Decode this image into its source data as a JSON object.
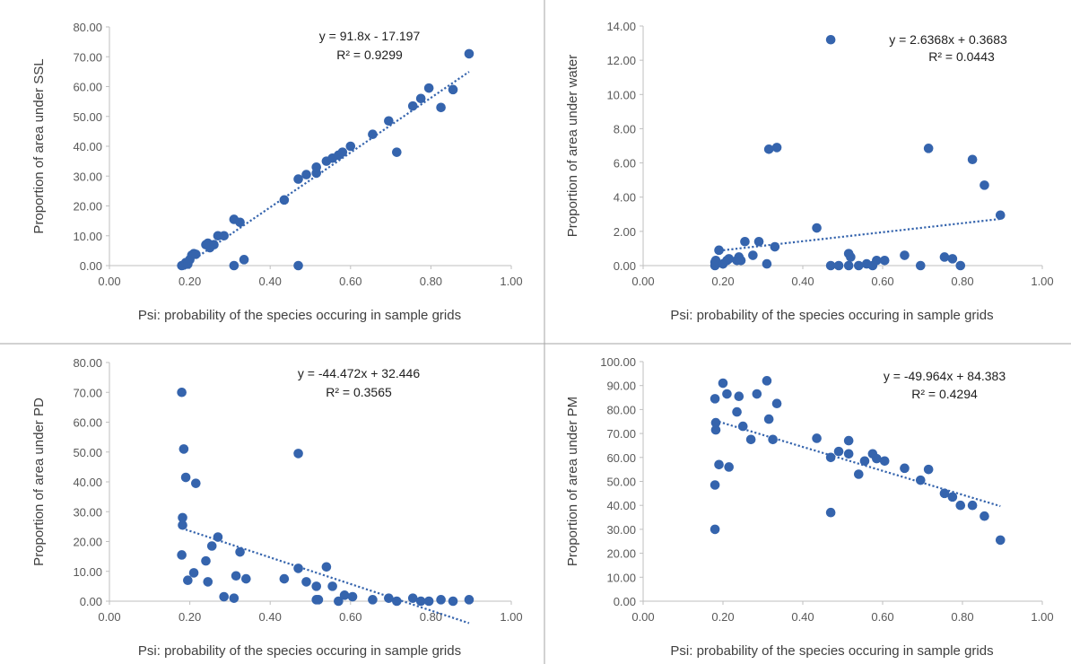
{
  "chart_data": [
    {
      "type": "scatter",
      "xlabel": "Psi: probability of the species occuring in sample grids",
      "ylabel": "Proportion of area under SSL",
      "xlim": [
        0,
        1
      ],
      "ylim": [
        0,
        80
      ],
      "xticks": [
        "0.00",
        "0.20",
        "0.40",
        "0.60",
        "0.80",
        "1.00"
      ],
      "yticks": [
        "0.00",
        "10.00",
        "20.00",
        "30.00",
        "40.00",
        "50.00",
        "60.00",
        "70.00",
        "80.00"
      ],
      "trendline": {
        "slope": 91.8,
        "intercept": -17.197,
        "style": "dotted"
      },
      "equation": "y = 91.8x - 17.197",
      "r_squared": "R² = 0.9299",
      "marker_color": "#3564ad",
      "grid": false,
      "points": [
        [
          0.18,
          0
        ],
        [
          0.185,
          0.2
        ],
        [
          0.19,
          1
        ],
        [
          0.195,
          0.5
        ],
        [
          0.2,
          2
        ],
        [
          0.205,
          3.5
        ],
        [
          0.21,
          4
        ],
        [
          0.215,
          3.8
        ],
        [
          0.24,
          7
        ],
        [
          0.245,
          7.5
        ],
        [
          0.25,
          6
        ],
        [
          0.26,
          7
        ],
        [
          0.27,
          10
        ],
        [
          0.285,
          10
        ],
        [
          0.31,
          15.5
        ],
        [
          0.31,
          0
        ],
        [
          0.325,
          14.5
        ],
        [
          0.335,
          2
        ],
        [
          0.435,
          22
        ],
        [
          0.47,
          29
        ],
        [
          0.47,
          0
        ],
        [
          0.49,
          30.5
        ],
        [
          0.515,
          31
        ],
        [
          0.515,
          33
        ],
        [
          0.54,
          35
        ],
        [
          0.555,
          36
        ],
        [
          0.57,
          37
        ],
        [
          0.58,
          38
        ],
        [
          0.6,
          40
        ],
        [
          0.655,
          44
        ],
        [
          0.695,
          48.5
        ],
        [
          0.715,
          38
        ],
        [
          0.755,
          53.5
        ],
        [
          0.775,
          56
        ],
        [
          0.795,
          59.5
        ],
        [
          0.825,
          53
        ],
        [
          0.855,
          59
        ],
        [
          0.895,
          71
        ]
      ]
    },
    {
      "type": "scatter",
      "xlabel": "Psi: probability of the species occuring in sample grids",
      "ylabel": "Proportion of area under water",
      "xlim": [
        0,
        1
      ],
      "ylim": [
        0,
        14
      ],
      "xticks": [
        "0.00",
        "0.20",
        "0.40",
        "0.60",
        "0.80",
        "1.00"
      ],
      "yticks": [
        "0.00",
        "2.00",
        "4.00",
        "6.00",
        "8.00",
        "10.00",
        "12.00",
        "14.00"
      ],
      "trendline": {
        "slope": 2.6368,
        "intercept": 0.3683,
        "style": "dotted"
      },
      "equation": "y = 2.6368x + 0.3683",
      "r_squared": "R² = 0.0443",
      "marker_color": "#3564ad",
      "grid": false,
      "points": [
        [
          0.18,
          0
        ],
        [
          0.18,
          0.2
        ],
        [
          0.182,
          0.3
        ],
        [
          0.19,
          0.9
        ],
        [
          0.2,
          0.1
        ],
        [
          0.21,
          0.3
        ],
        [
          0.215,
          0.4
        ],
        [
          0.235,
          0.3
        ],
        [
          0.24,
          0.5
        ],
        [
          0.245,
          0.3
        ],
        [
          0.255,
          1.4
        ],
        [
          0.275,
          0.6
        ],
        [
          0.29,
          1.4
        ],
        [
          0.31,
          0.1
        ],
        [
          0.315,
          6.8
        ],
        [
          0.33,
          1.1
        ],
        [
          0.335,
          6.9
        ],
        [
          0.435,
          2.2
        ],
        [
          0.47,
          13.2
        ],
        [
          0.47,
          0
        ],
        [
          0.49,
          0
        ],
        [
          0.515,
          0
        ],
        [
          0.515,
          0.7
        ],
        [
          0.52,
          0.5
        ],
        [
          0.54,
          0
        ],
        [
          0.56,
          0.1
        ],
        [
          0.575,
          0
        ],
        [
          0.585,
          0.3
        ],
        [
          0.605,
          0.3
        ],
        [
          0.655,
          0.6
        ],
        [
          0.695,
          0
        ],
        [
          0.715,
          6.85
        ],
        [
          0.755,
          0.5
        ],
        [
          0.775,
          0.4
        ],
        [
          0.795,
          0
        ],
        [
          0.825,
          6.2
        ],
        [
          0.855,
          4.7
        ],
        [
          0.895,
          2.95
        ]
      ]
    },
    {
      "type": "scatter",
      "xlabel": "Psi: probability of the species occuring in sample grids",
      "ylabel": "Proportion of area under PD",
      "xlim": [
        0,
        1
      ],
      "ylim": [
        0,
        80
      ],
      "xticks": [
        "0.00",
        "0.20",
        "0.40",
        "0.60",
        "0.80",
        "1.00"
      ],
      "yticks": [
        "0.00",
        "10.00",
        "20.00",
        "30.00",
        "40.00",
        "50.00",
        "60.00",
        "70.00",
        "80.00"
      ],
      "trendline": {
        "slope": -44.472,
        "intercept": 32.446,
        "style": "dotted"
      },
      "equation": "y = -44.472x + 32.446",
      "r_squared": "R² = 0.3565",
      "marker_color": "#3564ad",
      "grid": false,
      "points": [
        [
          0.18,
          70
        ],
        [
          0.18,
          15.5
        ],
        [
          0.182,
          28
        ],
        [
          0.182,
          25.5
        ],
        [
          0.185,
          51
        ],
        [
          0.19,
          41.5
        ],
        [
          0.195,
          7
        ],
        [
          0.21,
          9.5
        ],
        [
          0.215,
          39.5
        ],
        [
          0.24,
          13.5
        ],
        [
          0.245,
          6.5
        ],
        [
          0.255,
          18.5
        ],
        [
          0.27,
          21.5
        ],
        [
          0.285,
          1.5
        ],
        [
          0.31,
          1
        ],
        [
          0.315,
          8.5
        ],
        [
          0.325,
          16.5
        ],
        [
          0.34,
          7.5
        ],
        [
          0.435,
          7.5
        ],
        [
          0.47,
          49.5
        ],
        [
          0.47,
          11
        ],
        [
          0.49,
          6.5
        ],
        [
          0.515,
          5
        ],
        [
          0.515,
          0.5
        ],
        [
          0.52,
          0.5
        ],
        [
          0.54,
          11.5
        ],
        [
          0.555,
          5
        ],
        [
          0.57,
          0
        ],
        [
          0.585,
          2
        ],
        [
          0.605,
          1.5
        ],
        [
          0.655,
          0.5
        ],
        [
          0.695,
          1
        ],
        [
          0.715,
          0
        ],
        [
          0.755,
          1
        ],
        [
          0.775,
          0
        ],
        [
          0.795,
          0
        ],
        [
          0.825,
          0.5
        ],
        [
          0.855,
          0
        ],
        [
          0.895,
          0.5
        ]
      ]
    },
    {
      "type": "scatter",
      "xlabel": "Psi: probability of the species occuring in sample grids",
      "ylabel": "Proportion of area under PM",
      "xlim": [
        0,
        1
      ],
      "ylim": [
        0,
        100
      ],
      "xticks": [
        "0.00",
        "0.20",
        "0.40",
        "0.60",
        "0.80",
        "1.00"
      ],
      "yticks": [
        "0.00",
        "10.00",
        "20.00",
        "30.00",
        "40.00",
        "50.00",
        "60.00",
        "70.00",
        "80.00",
        "90.00",
        "100.00"
      ],
      "trendline": {
        "slope": -49.964,
        "intercept": 84.383,
        "style": "dotted"
      },
      "equation": "y = -49.964x + 84.383",
      "r_squared": "R² = 0.4294",
      "marker_color": "#3564ad",
      "grid": false,
      "points": [
        [
          0.18,
          30
        ],
        [
          0.18,
          48.5
        ],
        [
          0.182,
          71.5
        ],
        [
          0.182,
          74.5
        ],
        [
          0.18,
          84.5
        ],
        [
          0.19,
          57
        ],
        [
          0.2,
          91
        ],
        [
          0.21,
          86.5
        ],
        [
          0.215,
          56
        ],
        [
          0.235,
          79
        ],
        [
          0.24,
          85.5
        ],
        [
          0.25,
          73
        ],
        [
          0.27,
          67.5
        ],
        [
          0.285,
          86.5
        ],
        [
          0.31,
          92
        ],
        [
          0.315,
          76
        ],
        [
          0.325,
          67.5
        ],
        [
          0.335,
          82.5
        ],
        [
          0.435,
          68
        ],
        [
          0.47,
          60
        ],
        [
          0.47,
          37
        ],
        [
          0.49,
          62.5
        ],
        [
          0.515,
          67
        ],
        [
          0.515,
          61.5
        ],
        [
          0.54,
          53
        ],
        [
          0.555,
          58.5
        ],
        [
          0.575,
          61.5
        ],
        [
          0.585,
          59.5
        ],
        [
          0.605,
          58.5
        ],
        [
          0.655,
          55.5
        ],
        [
          0.695,
          50.5
        ],
        [
          0.715,
          55
        ],
        [
          0.755,
          45
        ],
        [
          0.775,
          43.5
        ],
        [
          0.795,
          40
        ],
        [
          0.825,
          40
        ],
        [
          0.855,
          35.5
        ],
        [
          0.895,
          25.5
        ]
      ]
    }
  ]
}
